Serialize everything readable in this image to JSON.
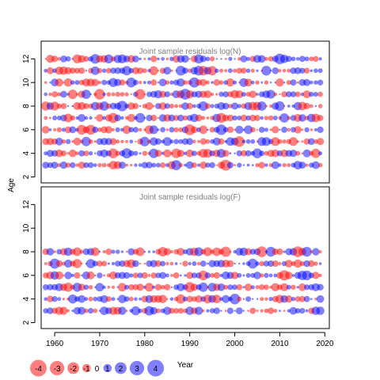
{
  "chart_data": {
    "type": "scatter",
    "bubble": true,
    "xlabel": "Year",
    "ylabel": "Age",
    "xlim": [
      1957,
      2021
    ],
    "xticks": [
      1960,
      1970,
      1980,
      1990,
      2000,
      2010,
      2020
    ],
    "ylim": [
      1.5,
      13.5
    ],
    "yticks": [
      2,
      4,
      6,
      8,
      10,
      12
    ],
    "colors": {
      "positive": "#0000ff",
      "negative": "#ff0000"
    },
    "panels": [
      {
        "title": "Joint sample residuals log(N)",
        "ages": [
          3,
          4,
          5,
          6,
          7,
          8,
          9,
          10,
          11,
          12
        ],
        "years": [
          1958,
          2019
        ]
      },
      {
        "title": "Joint sample residuals log(F)",
        "ages": [
          3,
          4,
          5,
          6,
          7,
          8
        ],
        "years": [
          1958,
          2019
        ]
      }
    ],
    "legend": {
      "position": "bottom-left",
      "values": [
        "-4",
        "-3",
        "-2",
        "-1",
        "0",
        "1",
        "2",
        "3",
        "4"
      ]
    }
  }
}
